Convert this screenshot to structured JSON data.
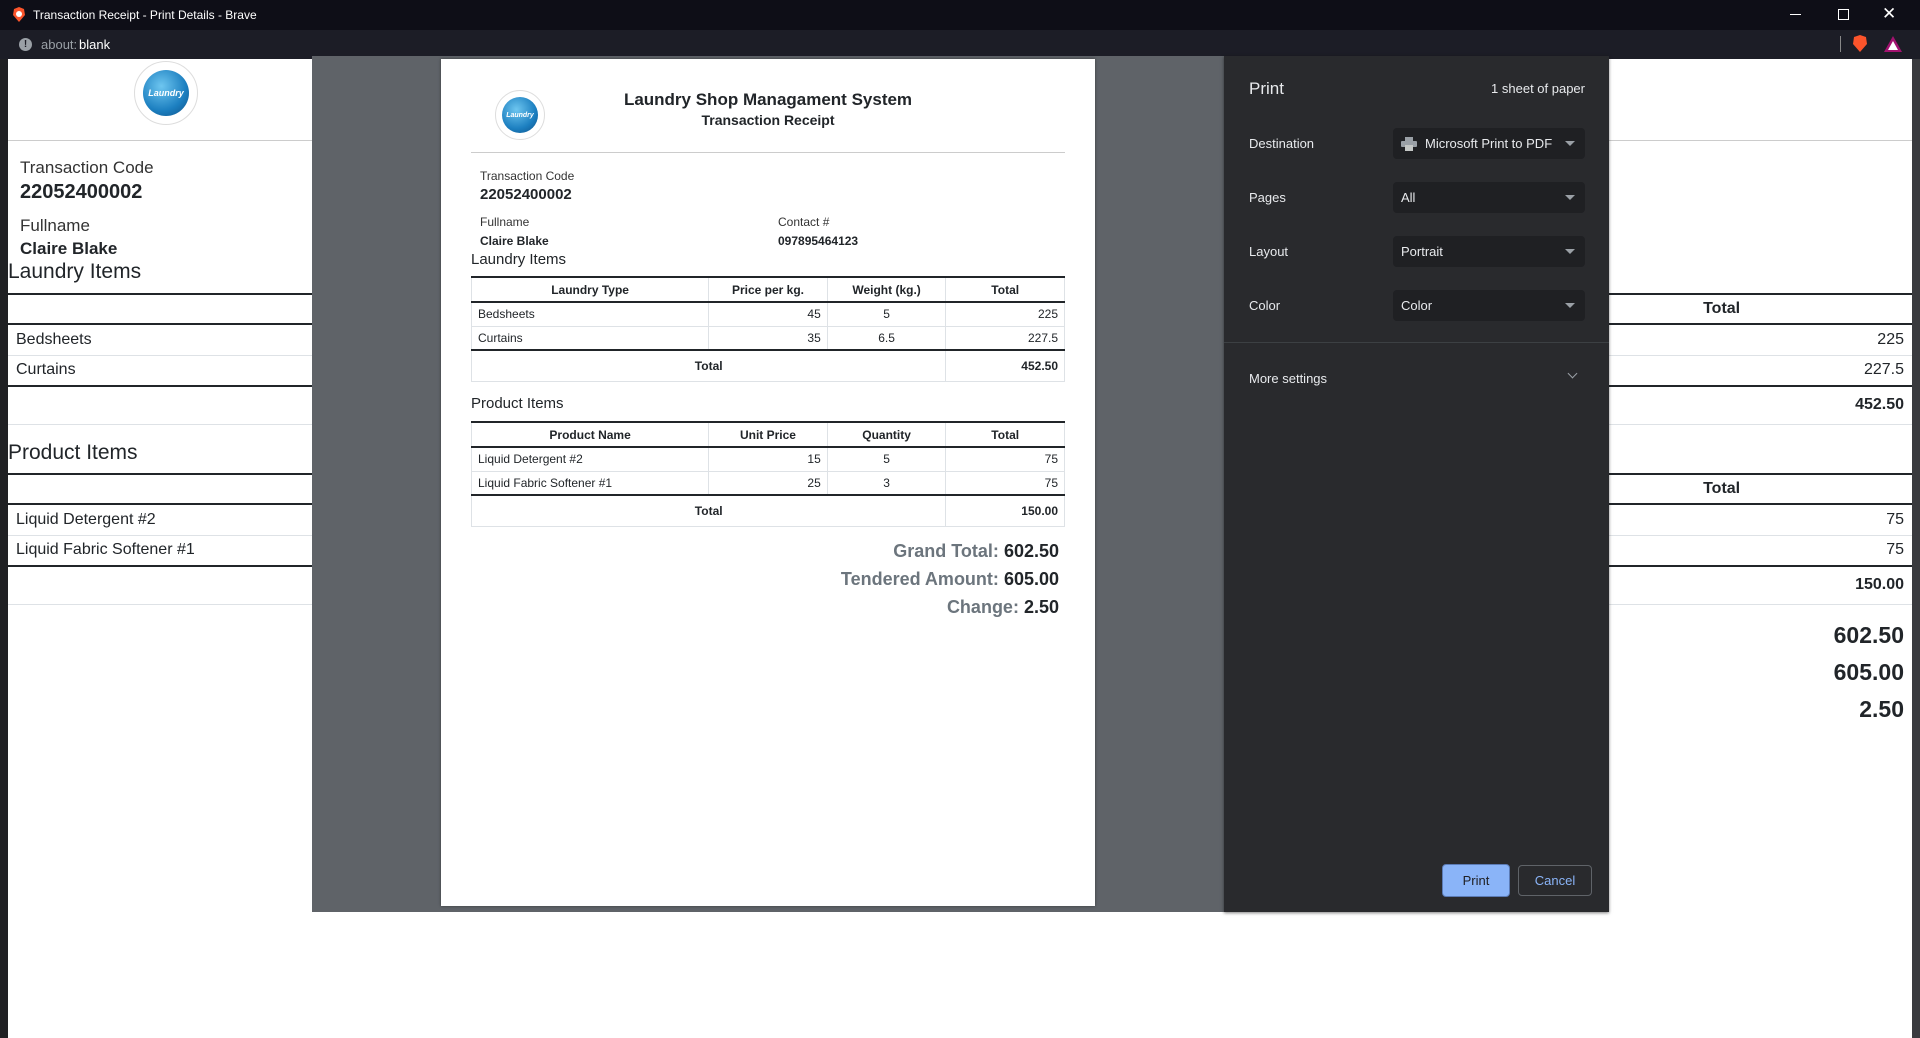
{
  "window": {
    "title": "Transaction Receipt - Print Details - Brave",
    "address_prefix": "about:",
    "address_main": "blank"
  },
  "background_page": {
    "transaction_code_label": "Transaction Code",
    "transaction_code": "22052400002",
    "fullname_label": "Fullname",
    "fullname": "Claire Blake",
    "laundry_heading": "Laundry Items",
    "laundry_total_header": "Total",
    "laundry_rows": [
      {
        "type": "Bedsheets",
        "total": "225"
      },
      {
        "type": "Curtains",
        "total": "227.5"
      }
    ],
    "laundry_sum": "452.50",
    "product_heading": "Product Items",
    "product_total_header": "Total",
    "product_rows": [
      {
        "name": "Liquid Detergent #2",
        "total": "75"
      },
      {
        "name": "Liquid Fabric Softener #1",
        "total": "75"
      }
    ],
    "product_sum": "150.00",
    "grand_total": "602.50",
    "tendered": "605.00",
    "change": "2.50"
  },
  "receipt": {
    "logo_text": "Laundry",
    "title": "Laundry Shop Managament System",
    "subtitle": "Transaction Receipt",
    "transaction_code_label": "Transaction Code",
    "transaction_code": "22052400002",
    "fullname_label": "Fullname",
    "fullname": "Claire Blake",
    "contact_label": "Contact #",
    "contact": "097895464123",
    "laundry_heading": "Laundry Items",
    "laundry_headers": [
      "Laundry Type",
      "Price per kg.",
      "Weight (kg.)",
      "Total"
    ],
    "laundry_rows": [
      [
        "Bedsheets",
        "45",
        "5",
        "225"
      ],
      [
        "Curtains",
        "35",
        "6.5",
        "227.5"
      ]
    ],
    "laundry_total_label": "Total",
    "laundry_total": "452.50",
    "product_heading": "Product Items",
    "product_headers": [
      "Product Name",
      "Unit Price",
      "Quantity",
      "Total"
    ],
    "product_rows": [
      [
        "Liquid Detergent #2",
        "15",
        "5",
        "75"
      ],
      [
        "Liquid Fabric Softener #1",
        "25",
        "3",
        "75"
      ]
    ],
    "product_total_label": "Total",
    "product_total": "150.00",
    "grand_total_label": "Grand Total:",
    "grand_total": "602.50",
    "tendered_label": "Tendered Amount:",
    "tendered": "605.00",
    "change_label": "Change:",
    "change": "2.50"
  },
  "print_dialog": {
    "title": "Print",
    "sheets": "1 sheet of paper",
    "destination_label": "Destination",
    "destination": "Microsoft Print to PDF",
    "pages_label": "Pages",
    "pages": "All",
    "layout_label": "Layout",
    "layout": "Portrait",
    "color_label": "Color",
    "color": "Color",
    "more_settings": "More settings",
    "print_button": "Print",
    "cancel_button": "Cancel",
    "accent": "#8ab4f8"
  }
}
